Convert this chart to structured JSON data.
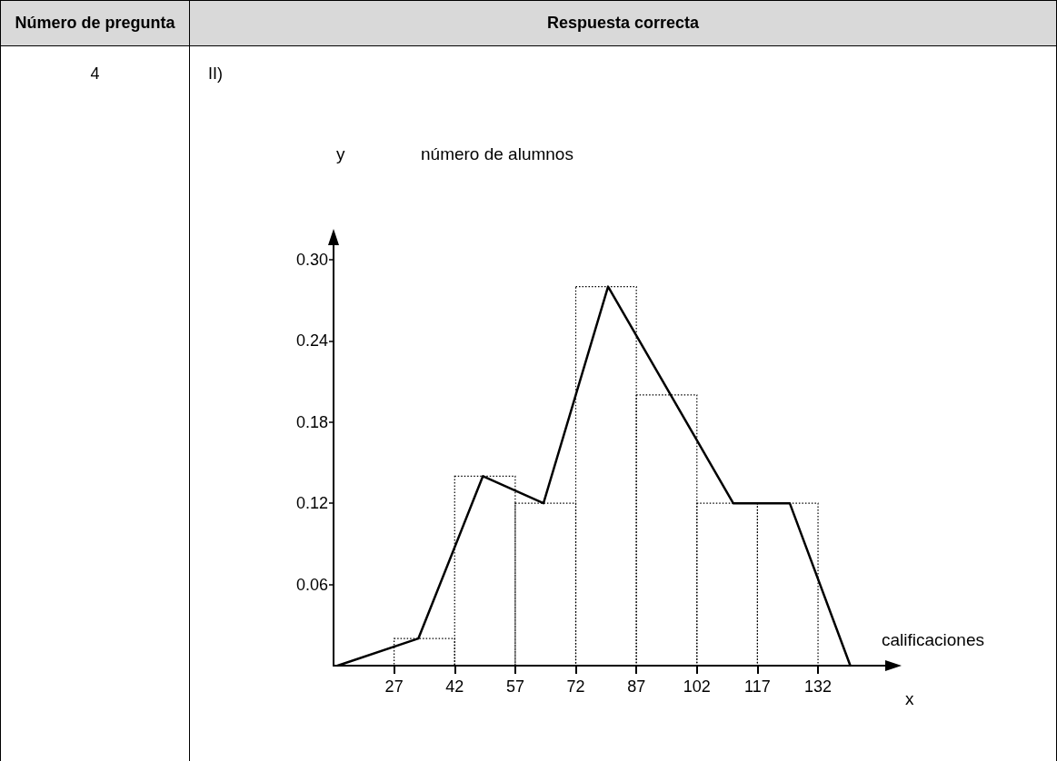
{
  "chart_data": {
    "type": "histogram",
    "xlabel": "calificaciones",
    "ylabel": "número de alumnos",
    "annotations": [
      "Número de pregunta",
      "Respuesta correcta",
      "4",
      "II)",
      "y",
      "x"
    ],
    "xlim": [
      12,
      150
    ],
    "xticks": [
      27,
      42,
      57,
      72,
      87,
      102,
      117,
      132
    ],
    "ylim": [
      0,
      0.32
    ],
    "yticks": [
      0.06,
      0.12,
      0.18,
      0.24,
      {
        "value": 0.3,
        "label": "0.30"
      }
    ],
    "grid": false,
    "series": [
      {
        "color": "#000000",
        "line_style": "dotted",
        "bins": [
          27,
          42,
          57,
          72,
          87,
          102,
          117,
          132
        ],
        "values": [
          0.02,
          0.14,
          0.12,
          0.28,
          0.2,
          0.12,
          0.12
        ]
      },
      {
        "type": "line",
        "color": "#000000",
        "line_style": "solid",
        "marker": "none",
        "x": [
          13,
          33,
          49,
          64,
          80,
          111,
          125,
          140
        ],
        "values": [
          0,
          0.02,
          0.14,
          0.12,
          0.28,
          0.12,
          0.12,
          0
        ]
      }
    ]
  }
}
